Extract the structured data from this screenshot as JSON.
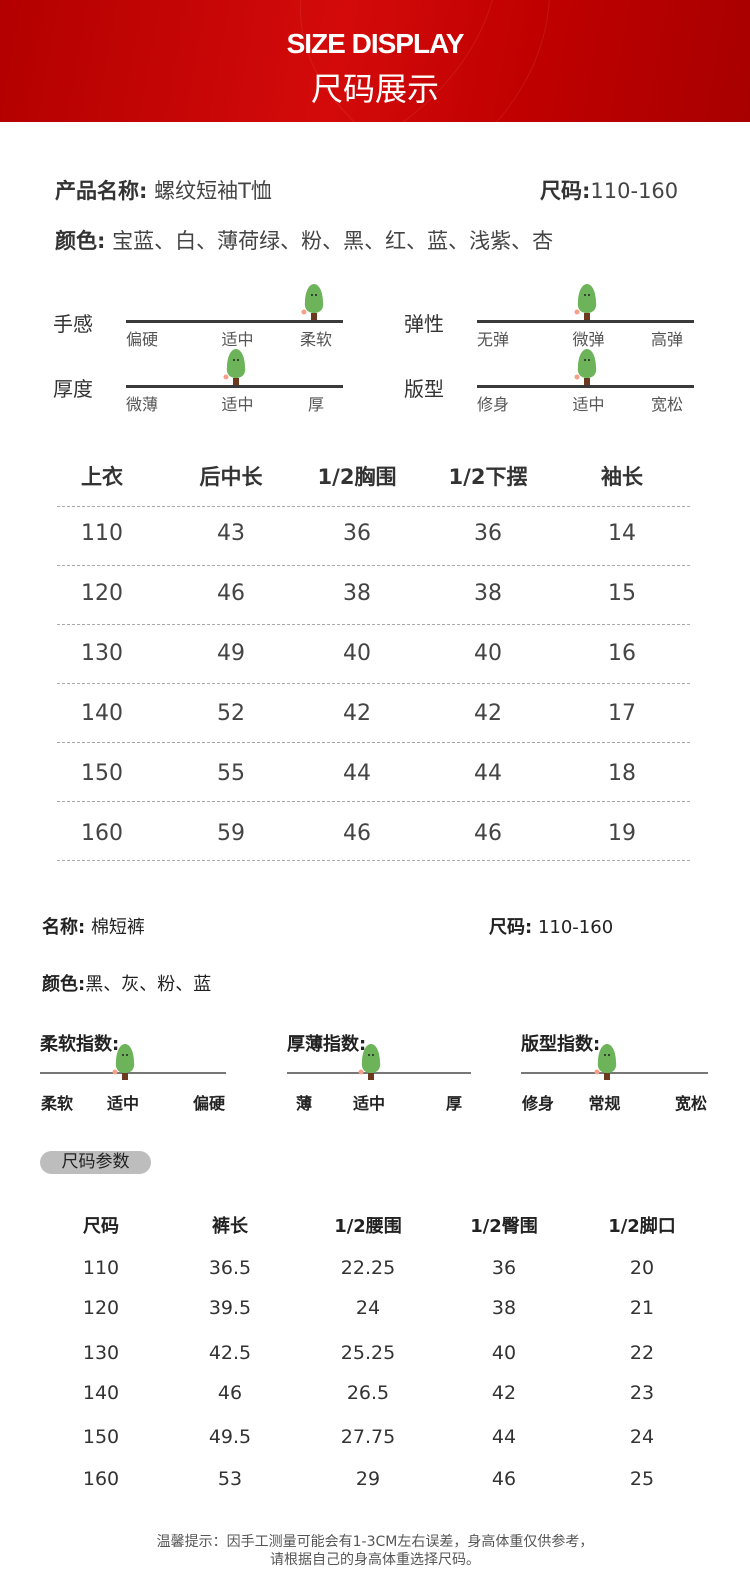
{
  "header": {
    "title_en": "SIZE DISPLAY",
    "title_cn": "尺码展示",
    "bg_color": "#c00000"
  },
  "top": {
    "product_label": "产品名称:",
    "product_value": "螺纹短袖T恤",
    "size_label": "尺码:",
    "size_value": "110-160",
    "color_label": "颜色:",
    "color_value": "宝蓝、白、薄荷绿、粉、黑、红、蓝、浅紫、杏",
    "scales": [
      {
        "label": "手感",
        "ticks": [
          "偏硬",
          "适中",
          "柔软"
        ],
        "level": 2
      },
      {
        "label": "弹性",
        "ticks": [
          "无弹",
          "微弹",
          "高弹"
        ],
        "level": 1
      },
      {
        "label": "厚度",
        "ticks": [
          "微薄",
          "适中",
          "厚"
        ],
        "level": 1
      },
      {
        "label": "版型",
        "ticks": [
          "修身",
          "适中",
          "宽松"
        ],
        "level": 1
      }
    ],
    "table": {
      "headers": [
        "上衣",
        "后中长",
        "1/2胸围",
        "1/2下摆",
        "袖长"
      ],
      "rows": [
        [
          "110",
          "43",
          "36",
          "36",
          "14"
        ],
        [
          "120",
          "46",
          "38",
          "38",
          "15"
        ],
        [
          "130",
          "49",
          "40",
          "40",
          "16"
        ],
        [
          "140",
          "52",
          "42",
          "42",
          "17"
        ],
        [
          "150",
          "55",
          "44",
          "44",
          "18"
        ],
        [
          "160",
          "59",
          "46",
          "46",
          "19"
        ]
      ]
    }
  },
  "bottom": {
    "name_label": "名称:",
    "name_value": "棉短裤",
    "size_label": "尺码:",
    "size_value": "110-160",
    "color_label": "颜色:",
    "color_value": "黑、灰、粉、蓝",
    "indices": [
      {
        "label": "柔软指数:",
        "ticks": [
          "柔软",
          "适中",
          "偏硬"
        ],
        "level": 1
      },
      {
        "label": "厚薄指数:",
        "ticks": [
          "薄",
          "适中",
          "厚"
        ],
        "level": 1
      },
      {
        "label": "版型指数:",
        "ticks": [
          "修身",
          "常规",
          "宽松"
        ],
        "level": 1
      }
    ],
    "params_button": "尺码参数",
    "table": {
      "headers": [
        "尺码",
        "裤长",
        "1/2腰围",
        "1/2臀围",
        "1/2脚口"
      ],
      "rows": [
        [
          "110",
          "36.5",
          "22.25",
          "36",
          "20"
        ],
        [
          "120",
          "39.5",
          "24",
          "38",
          "21"
        ],
        [
          "130",
          "42.5",
          "25.25",
          "40",
          "22"
        ],
        [
          "140",
          "46",
          "26.5",
          "42",
          "23"
        ],
        [
          "150",
          "49.5",
          "27.75",
          "44",
          "24"
        ],
        [
          "160",
          "53",
          "29",
          "46",
          "25"
        ]
      ]
    }
  },
  "note": {
    "line1": "温馨提示：因手工测量可能会有1-3CM左右误差，身高体重仅供参考，",
    "line2": "请根据自己的身高体重选择尺码。"
  }
}
